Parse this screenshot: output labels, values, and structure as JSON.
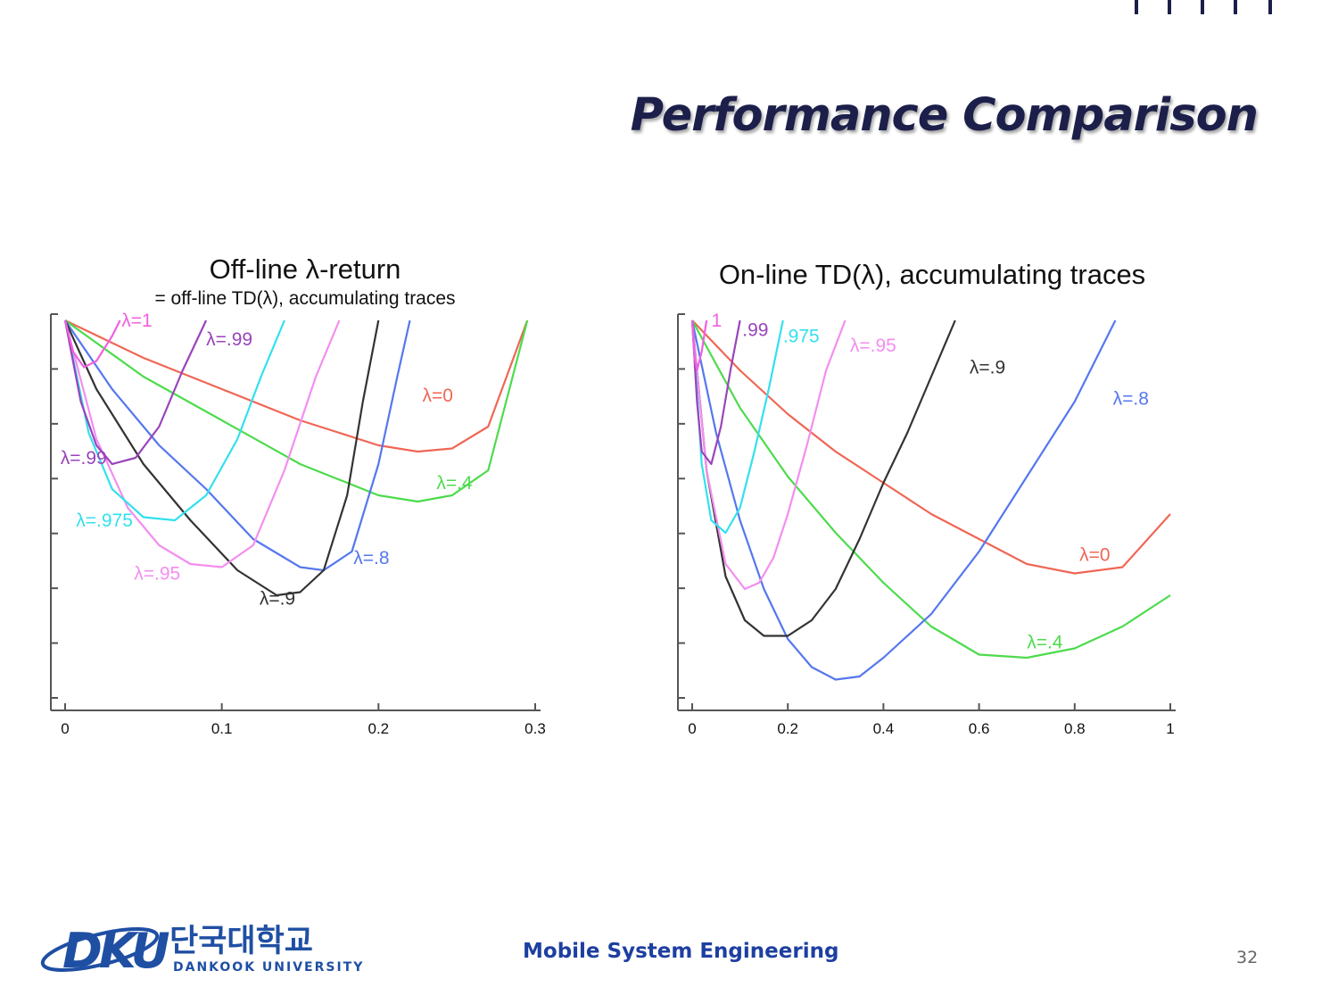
{
  "slide": {
    "title": "Performance Comparison",
    "footer": "Mobile System Engineering",
    "page_number": "32",
    "logo": {
      "text_korean": "단국대학교",
      "text_english": "DANKOOK UNIVERSITY",
      "mark": "DKU"
    },
    "colors": {
      "title": "#1c1f4a",
      "footer": "#1d3fa0",
      "logo": "#1f4fa3"
    }
  },
  "chart_data": [
    {
      "type": "line",
      "title": "Off-line λ-return",
      "subtitle": "= off-line TD(λ), accumulating traces",
      "xlabel": "",
      "ylabel": "",
      "xlim": [
        0,
        0.3
      ],
      "ylim": [
        0,
        0.62
      ],
      "x_ticks": [
        "0",
        "0.1",
        "0.2",
        "0.3"
      ],
      "y_tick_count": 7,
      "grid": false,
      "series": [
        {
          "name": "λ=0",
          "color": "#f06655",
          "label_pos": [
            0.224,
            0.47
          ],
          "x": [
            0,
            0.05,
            0.1,
            0.15,
            0.2,
            0.225,
            0.247,
            0.27,
            0.295
          ],
          "y": [
            0.61,
            0.55,
            0.5,
            0.45,
            0.41,
            0.4,
            0.405,
            0.44,
            0.61
          ]
        },
        {
          "name": "λ=.4",
          "color": "#4ddb4d",
          "label_pos": [
            0.235,
            0.35
          ],
          "x": [
            0,
            0.05,
            0.1,
            0.15,
            0.2,
            0.225,
            0.247,
            0.27,
            0.295
          ],
          "y": [
            0.61,
            0.52,
            0.45,
            0.38,
            0.33,
            0.32,
            0.33,
            0.37,
            0.61
          ]
        },
        {
          "name": "λ=.8",
          "color": "#5577ee",
          "label_pos": [
            0.184,
            0.205
          ],
          "x": [
            0,
            0.03,
            0.06,
            0.09,
            0.12,
            0.15,
            0.165,
            0.183,
            0.2,
            0.212,
            0.22
          ],
          "y": [
            0.61,
            0.5,
            0.41,
            0.34,
            0.26,
            0.215,
            0.21,
            0.24,
            0.38,
            0.52,
            0.61
          ]
        },
        {
          "name": "λ=.9",
          "color": "#333333",
          "label_pos": [
            0.136,
            0.145
          ],
          "x": [
            0,
            0.02,
            0.05,
            0.08,
            0.11,
            0.135,
            0.15,
            0.165,
            0.18,
            0.19,
            0.2
          ],
          "y": [
            0.61,
            0.5,
            0.38,
            0.29,
            0.21,
            0.17,
            0.175,
            0.21,
            0.33,
            0.48,
            0.61
          ]
        },
        {
          "name": "λ=.95",
          "color": "#f38ef0",
          "label_pos": [
            0.06,
            0.195
          ],
          "x": [
            0,
            0.02,
            0.04,
            0.06,
            0.08,
            0.1,
            0.12,
            0.14,
            0.16,
            0.175
          ],
          "y": [
            0.61,
            0.42,
            0.31,
            0.25,
            0.22,
            0.215,
            0.25,
            0.37,
            0.52,
            0.61
          ]
        },
        {
          "name": "λ=.975",
          "color": "#33e0ee",
          "label_pos": [
            0.028,
            0.275
          ],
          "x": [
            0,
            0.015,
            0.03,
            0.05,
            0.07,
            0.09,
            0.11,
            0.125,
            0.14
          ],
          "y": [
            0.61,
            0.43,
            0.34,
            0.295,
            0.29,
            0.33,
            0.42,
            0.52,
            0.61
          ]
        },
        {
          "name": "λ=.99",
          "color": "#9944bb",
          "label_pos": [
            0.012,
            0.365
          ],
          "x": [
            0,
            0.01,
            0.02,
            0.03,
            0.045,
            0.06,
            0.075,
            0.09
          ],
          "y": [
            0.61,
            0.48,
            0.41,
            0.38,
            0.39,
            0.44,
            0.53,
            0.61
          ]
        },
        {
          "name": "λ=1",
          "color": "#f060e0",
          "label_pos": [
            0.045,
            0.61
          ],
          "x": [
            0,
            0.005,
            0.012,
            0.02,
            0.03,
            0.035
          ],
          "y": [
            0.61,
            0.56,
            0.535,
            0.545,
            0.585,
            0.61
          ]
        }
      ],
      "curve_labels": [
        {
          "text": "λ=1",
          "x": 0.036,
          "y": 0.6,
          "color": "#f060e0"
        },
        {
          "text": "λ=.99",
          "x": 0.09,
          "y": 0.57,
          "color": "#9944bb"
        },
        {
          "text": "λ=.99",
          "x": -0.003,
          "y": 0.38,
          "color": "#9944bb"
        },
        {
          "text": "λ=0",
          "x": 0.228,
          "y": 0.48,
          "color": "#f06655"
        },
        {
          "text": "λ=.4",
          "x": 0.237,
          "y": 0.34,
          "color": "#4ddb4d"
        },
        {
          "text": "λ=.975",
          "x": 0.007,
          "y": 0.28,
          "color": "#33e0ee"
        },
        {
          "text": "λ=.8",
          "x": 0.184,
          "y": 0.22,
          "color": "#5577ee"
        },
        {
          "text": "λ=.95",
          "x": 0.044,
          "y": 0.195,
          "color": "#f38ef0"
        },
        {
          "text": "λ=.9",
          "x": 0.124,
          "y": 0.155,
          "color": "#333333"
        }
      ]
    },
    {
      "type": "line",
      "title": "On-line TD(λ), accumulating traces",
      "subtitle": "",
      "xlabel": "",
      "ylabel": "",
      "xlim": [
        0,
        1
      ],
      "ylim": [
        0,
        0.62
      ],
      "x_ticks": [
        "0",
        "0.2",
        "0.4",
        "0.6",
        "0.8",
        "1"
      ],
      "y_tick_count": 7,
      "grid": false,
      "series": [
        {
          "name": "λ=0",
          "color": "#f06655",
          "x": [
            0,
            0.1,
            0.2,
            0.3,
            0.4,
            0.5,
            0.6,
            0.7,
            0.8,
            0.9,
            1
          ],
          "y": [
            0.61,
            0.53,
            0.46,
            0.4,
            0.35,
            0.3,
            0.26,
            0.22,
            0.205,
            0.215,
            0.3
          ]
        },
        {
          "name": "λ=.4",
          "color": "#4ddb4d",
          "x": [
            0,
            0.1,
            0.2,
            0.3,
            0.4,
            0.5,
            0.6,
            0.7,
            0.8,
            0.9,
            1
          ],
          "y": [
            0.61,
            0.47,
            0.36,
            0.27,
            0.19,
            0.12,
            0.075,
            0.07,
            0.085,
            0.12,
            0.17
          ]
        },
        {
          "name": "λ=.8",
          "color": "#5577ee",
          "x": [
            0,
            0.05,
            0.1,
            0.15,
            0.2,
            0.25,
            0.3,
            0.35,
            0.4,
            0.5,
            0.6,
            0.7,
            0.8,
            0.885
          ],
          "y": [
            0.61,
            0.43,
            0.29,
            0.18,
            0.1,
            0.055,
            0.035,
            0.04,
            0.07,
            0.14,
            0.24,
            0.36,
            0.48,
            0.61
          ]
        },
        {
          "name": "λ=.9",
          "color": "#333333",
          "x": [
            0,
            0.03,
            0.07,
            0.11,
            0.15,
            0.2,
            0.25,
            0.3,
            0.35,
            0.4,
            0.45,
            0.5,
            0.55
          ],
          "y": [
            0.61,
            0.37,
            0.2,
            0.13,
            0.105,
            0.105,
            0.13,
            0.18,
            0.26,
            0.35,
            0.43,
            0.52,
            0.61
          ]
        },
        {
          "name": "λ=.95",
          "color": "#f38ef0",
          "x": [
            0,
            0.03,
            0.07,
            0.11,
            0.14,
            0.17,
            0.2,
            0.24,
            0.28,
            0.32
          ],
          "y": [
            0.61,
            0.37,
            0.22,
            0.18,
            0.19,
            0.23,
            0.3,
            0.41,
            0.53,
            0.61
          ]
        },
        {
          "name": "λ=.975",
          "color": "#33e0ee",
          "x": [
            0,
            0.02,
            0.04,
            0.07,
            0.1,
            0.13,
            0.16,
            0.19
          ],
          "y": [
            0.61,
            0.38,
            0.29,
            0.27,
            0.31,
            0.4,
            0.5,
            0.61
          ]
        },
        {
          "name": "λ=.99",
          "color": "#9944bb",
          "x": [
            0,
            0.01,
            0.02,
            0.04,
            0.06,
            0.08,
            0.1
          ],
          "y": [
            0.61,
            0.48,
            0.4,
            0.38,
            0.44,
            0.53,
            0.61
          ]
        },
        {
          "name": "λ=1",
          "color": "#f060e0",
          "x": [
            0,
            0.005,
            0.01,
            0.02,
            0.03
          ],
          "y": [
            0.61,
            0.55,
            0.53,
            0.56,
            0.61
          ]
        }
      ],
      "curve_labels": [
        {
          "text": "1",
          "x": 0.04,
          "y": 0.6,
          "color": "#f060e0"
        },
        {
          "text": ".99",
          "x": 0.105,
          "y": 0.585,
          "color": "#9944bb"
        },
        {
          "text": ".975",
          "x": 0.19,
          "y": 0.575,
          "color": "#33e0ee"
        },
        {
          "text": "λ=.95",
          "x": 0.33,
          "y": 0.56,
          "color": "#f38ef0"
        },
        {
          "text": "λ=.9",
          "x": 0.58,
          "y": 0.525,
          "color": "#333333"
        },
        {
          "text": "λ=.8",
          "x": 0.88,
          "y": 0.475,
          "color": "#5577ee"
        },
        {
          "text": "λ=0",
          "x": 0.81,
          "y": 0.225,
          "color": "#f06655"
        },
        {
          "text": "λ=.4",
          "x": 0.7,
          "y": 0.085,
          "color": "#4ddb4d"
        }
      ]
    }
  ]
}
